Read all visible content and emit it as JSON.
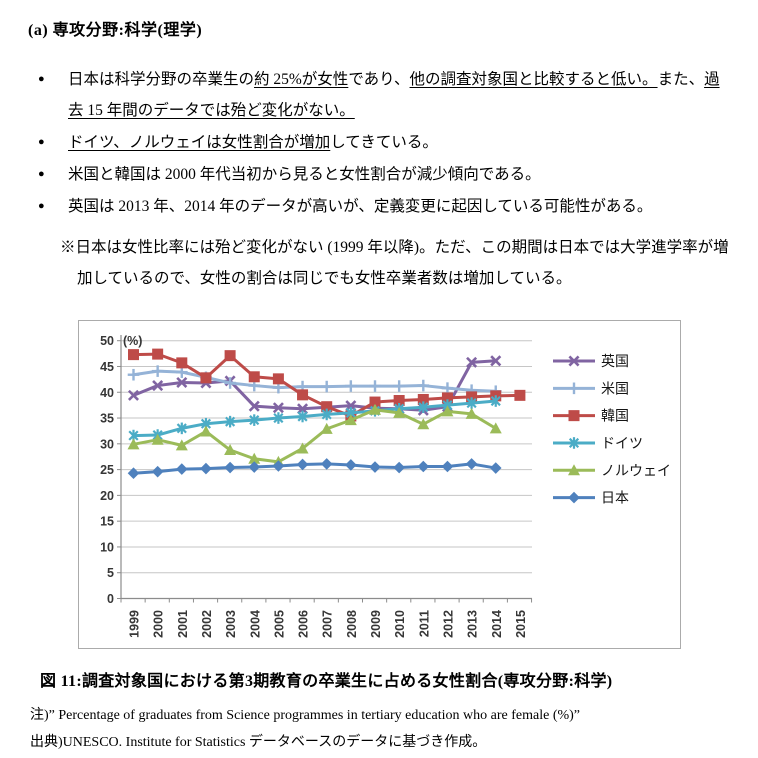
{
  "heading": "(a) 専攻分野:科学(理学)",
  "bullets": [
    {
      "segments": [
        {
          "t": "日本は科学分野の卒業生の"
        },
        {
          "t": "約 25%が女性",
          "u": true
        },
        {
          "t": "であり、"
        },
        {
          "t": "他の調査対象国と比較すると低い。",
          "u": true
        },
        {
          "t": "また、"
        },
        {
          "t": "過去 15 年間のデータでは殆ど変化がない。",
          "u": true
        }
      ]
    },
    {
      "segments": [
        {
          "t": "ドイツ、ノルウェイは女性割合が増加",
          "u": true
        },
        {
          "t": "してきている。"
        }
      ]
    },
    {
      "segments": [
        {
          "t": "米国と韓国は 2000 年代当初から見ると女性割合が減少傾向である。"
        }
      ]
    },
    {
      "segments": [
        {
          "t": "英国は 2013 年、2014 年のデータが高いが、定義変更に起因している可能性がある。"
        }
      ]
    }
  ],
  "note": "※日本は女性比率には殆ど変化がない (1999 年以降)。ただ、この期間は日本では大学進学率が増加しているので、女性の割合は同じでも女性卒業者数は増加している。",
  "caption": "図 11:調査対象国における第3期教育の卒業生に占める女性割合(専攻分野:科学)",
  "footnotes": [
    "注)” Percentage of graduates from Science programmes in tertiary education who are female (%)”",
    "出典)UNESCO. Institute for Statistics データベースのデータに基づき作成。"
  ],
  "chart_data": {
    "type": "line",
    "x": [
      1999,
      2000,
      2001,
      2002,
      2003,
      2004,
      2005,
      2006,
      2007,
      2008,
      2009,
      2010,
      2011,
      2012,
      2013,
      2014,
      2015
    ],
    "unit_label": "(%)",
    "ylim": [
      0,
      50
    ],
    "ytick_step": 5,
    "grid": true,
    "legend_position": "right",
    "series": [
      {
        "key": "uk",
        "name": "英国",
        "color": "#8064A2",
        "marker": "x",
        "values": [
          39.4,
          41.3,
          41.9,
          41.8,
          42.2,
          37.3,
          37.0,
          36.8,
          37.1,
          37.4,
          36.9,
          36.8,
          36.5,
          37.2,
          45.8,
          46.1,
          null
        ]
      },
      {
        "key": "us",
        "name": "米国",
        "color": "#95B3D7",
        "marker": "plus",
        "values": [
          43.4,
          44.1,
          43.9,
          42.9,
          41.8,
          41.3,
          40.9,
          41.1,
          41.1,
          41.2,
          41.2,
          41.2,
          41.3,
          40.8,
          40.4,
          40.2,
          null
        ]
      },
      {
        "key": "korea",
        "name": "韓国",
        "color": "#BE4B48",
        "marker": "square",
        "values": [
          47.3,
          47.4,
          45.7,
          42.8,
          47.1,
          43.0,
          42.6,
          39.5,
          37.2,
          35.4,
          38.1,
          38.4,
          38.6,
          38.9,
          39.1,
          39.3,
          39.4
        ]
      },
      {
        "key": "germany",
        "name": "ドイツ",
        "color": "#4BACC6",
        "marker": "asterisk",
        "values": [
          31.6,
          31.7,
          33.0,
          33.9,
          34.3,
          34.6,
          35.0,
          35.3,
          35.7,
          36.0,
          36.4,
          36.8,
          37.1,
          37.5,
          37.9,
          38.3,
          null
        ]
      },
      {
        "key": "norway",
        "name": "ノルウェイ",
        "color": "#9BBB59",
        "marker": "triangle",
        "values": [
          29.9,
          30.8,
          29.7,
          32.4,
          28.8,
          27.1,
          26.5,
          29.1,
          32.9,
          34.6,
          36.6,
          36.0,
          33.8,
          36.3,
          35.8,
          33.0,
          null
        ]
      },
      {
        "key": "japan",
        "name": "日本",
        "color": "#4F81BD",
        "marker": "diamond",
        "values": [
          24.3,
          24.6,
          25.1,
          25.2,
          25.4,
          25.5,
          25.7,
          26.0,
          26.1,
          25.9,
          25.5,
          25.4,
          25.6,
          25.6,
          26.1,
          25.3,
          null
        ]
      }
    ]
  }
}
